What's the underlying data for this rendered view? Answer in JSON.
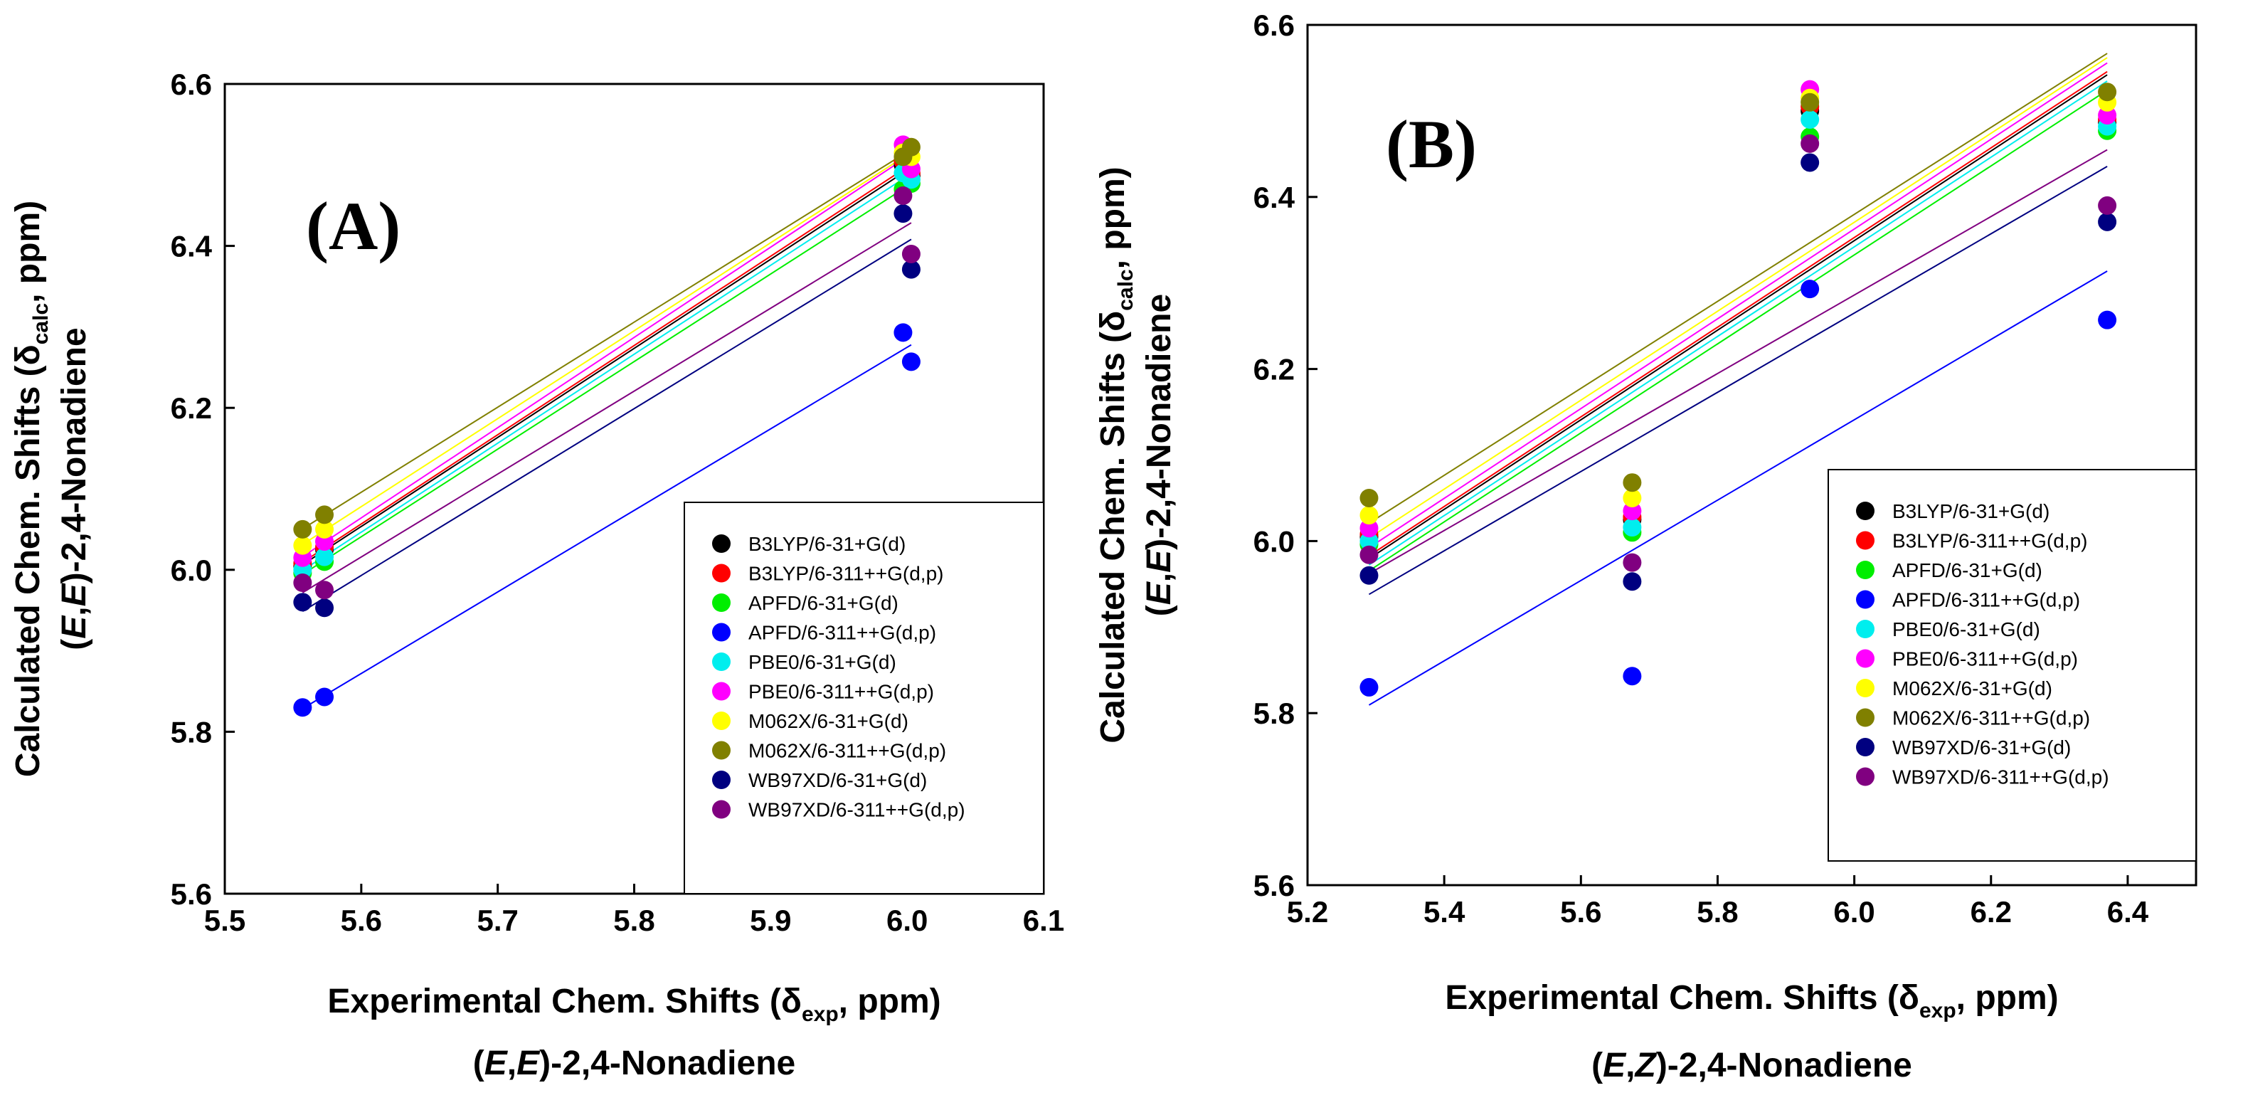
{
  "figure": {
    "panels": [
      "(A)",
      "(B)"
    ]
  },
  "legend": [
    {
      "name": "B3LYP/6-31+G(d)",
      "color": "#000000"
    },
    {
      "name": "B3LYP/6-311++G(d,p)",
      "color": "#ff0000"
    },
    {
      "name": "APFD/6-31+G(d)",
      "color": "#00ee00"
    },
    {
      "name": "APFD/6-311++G(d,p)",
      "color": "#0000ff"
    },
    {
      "name": "PBE0/6-31+G(d)",
      "color": "#00eeee"
    },
    {
      "name": "PBE0/6-311++G(d,p)",
      "color": "#ff00ff"
    },
    {
      "name": "M062X/6-31+G(d)",
      "color": "#ffff00"
    },
    {
      "name": "M062X/6-311++G(d,p)",
      "color": "#808000"
    },
    {
      "name": "WB97XD/6-31+G(d)",
      "color": "#000080"
    },
    {
      "name": "WB97XD/6-311++G(d,p)",
      "color": "#800080"
    }
  ],
  "chart_data": [
    {
      "type": "scatter",
      "panel_label": "(A)",
      "xlabel": "Experimental Chem. Shifts (δexp, ppm)",
      "xlabel_line2": "(E,E)-2,4-Nonadiene",
      "ylabel": "Calculated Chem. Shifts (δcalc, ppm)",
      "ylabel_line2": "(E,E)-2,4-Nonadiene",
      "xlim": [
        5.5,
        6.1
      ],
      "ylim": [
        5.6,
        6.6
      ],
      "xticks": [
        "5.5",
        "5.6",
        "5.7",
        "5.8",
        "5.9",
        "6.0",
        "6.1"
      ],
      "yticks": [
        "5.6",
        "5.8",
        "6.0",
        "6.2",
        "6.4",
        "6.6"
      ],
      "legend_position": "bottom-right",
      "fit_lines": true,
      "series": [
        {
          "name": "B3LYP/6-31+G(d)",
          "color": "#000000",
          "x": [
            5.557,
            5.573,
            5.997,
            6.003
          ],
          "y": [
            6.005,
            6.025,
            6.5,
            6.487
          ]
        },
        {
          "name": "B3LYP/6-311++G(d,p)",
          "color": "#ff0000",
          "x": [
            5.557,
            5.573,
            5.997,
            6.003
          ],
          "y": [
            6.008,
            6.028,
            6.505,
            6.49
          ]
        },
        {
          "name": "APFD/6-31+G(d)",
          "color": "#00ee00",
          "x": [
            5.557,
            5.573,
            5.997,
            6.003
          ],
          "y": [
            5.996,
            6.01,
            6.47,
            6.477
          ]
        },
        {
          "name": "APFD/6-311++G(d,p)",
          "color": "#0000ff",
          "x": [
            5.557,
            5.573,
            5.997,
            6.003
          ],
          "y": [
            5.83,
            5.843,
            6.293,
            6.257
          ]
        },
        {
          "name": "PBE0/6-31+G(d)",
          "color": "#00eeee",
          "x": [
            5.557,
            5.573,
            5.997,
            6.003
          ],
          "y": [
            6.0,
            6.016,
            6.49,
            6.482
          ]
        },
        {
          "name": "PBE0/6-311++G(d,p)",
          "color": "#ff00ff",
          "x": [
            5.557,
            5.573,
            5.997,
            6.003
          ],
          "y": [
            6.015,
            6.035,
            6.525,
            6.495
          ]
        },
        {
          "name": "M062X/6-31+G(d)",
          "color": "#ffff00",
          "x": [
            5.557,
            5.573,
            5.997,
            6.003
          ],
          "y": [
            6.03,
            6.05,
            6.515,
            6.51
          ]
        },
        {
          "name": "M062X/6-311++G(d,p)",
          "color": "#808000",
          "x": [
            5.557,
            5.573,
            5.997,
            6.003
          ],
          "y": [
            6.05,
            6.068,
            6.51,
            6.522
          ]
        },
        {
          "name": "WB97XD/6-31+G(d)",
          "color": "#000080",
          "x": [
            5.557,
            5.573,
            5.997,
            6.003
          ],
          "y": [
            5.96,
            5.953,
            6.44,
            6.371
          ]
        },
        {
          "name": "WB97XD/6-311++G(d,p)",
          "color": "#800080",
          "x": [
            5.557,
            5.573,
            5.997,
            6.003
          ],
          "y": [
            5.984,
            5.975,
            6.462,
            6.39
          ]
        }
      ]
    },
    {
      "type": "scatter",
      "panel_label": "(B)",
      "xlabel": "Experimental Chem. Shifts (δexp, ppm)",
      "xlabel_line2": "(E,Z)-2,4-Nonadiene",
      "ylabel": "Calculated Chem. Shifts (δcalc, ppm)",
      "ylabel_line2": "(E,E)-2,4-Nonadiene",
      "xlim": [
        5.2,
        6.5
      ],
      "ylim": [
        5.6,
        6.6
      ],
      "xticks": [
        "5.2",
        "5.4",
        "5.6",
        "5.8",
        "6.0",
        "6.2",
        "6.4"
      ],
      "yticks": [
        "5.6",
        "5.8",
        "6.0",
        "6.2",
        "6.4",
        "6.6"
      ],
      "legend_position": "bottom-right",
      "fit_lines": true,
      "series": [
        {
          "name": "B3LYP/6-31+G(d)",
          "color": "#000000",
          "x": [
            5.29,
            5.675,
            5.935,
            6.37
          ],
          "y": [
            6.005,
            6.025,
            6.5,
            6.487
          ]
        },
        {
          "name": "B3LYP/6-311++G(d,p)",
          "color": "#ff0000",
          "x": [
            5.29,
            5.675,
            5.935,
            6.37
          ],
          "y": [
            6.008,
            6.028,
            6.505,
            6.49
          ]
        },
        {
          "name": "APFD/6-31+G(d)",
          "color": "#00ee00",
          "x": [
            5.29,
            5.675,
            5.935,
            6.37
          ],
          "y": [
            5.996,
            6.01,
            6.47,
            6.477
          ]
        },
        {
          "name": "APFD/6-311++G(d,p)",
          "color": "#0000ff",
          "x": [
            5.29,
            5.675,
            5.935,
            6.37
          ],
          "y": [
            5.83,
            5.843,
            6.293,
            6.257
          ]
        },
        {
          "name": "PBE0/6-31+G(d)",
          "color": "#00eeee",
          "x": [
            5.29,
            5.675,
            5.935,
            6.37
          ],
          "y": [
            6.0,
            6.016,
            6.49,
            6.482
          ]
        },
        {
          "name": "PBE0/6-311++G(d,p)",
          "color": "#ff00ff",
          "x": [
            5.29,
            5.675,
            5.935,
            6.37
          ],
          "y": [
            6.015,
            6.035,
            6.525,
            6.495
          ]
        },
        {
          "name": "M062X/6-31+G(d)",
          "color": "#ffff00",
          "x": [
            5.29,
            5.675,
            5.935,
            6.37
          ],
          "y": [
            6.03,
            6.05,
            6.515,
            6.51
          ]
        },
        {
          "name": "M062X/6-311++G(d,p)",
          "color": "#808000",
          "x": [
            5.29,
            5.675,
            5.935,
            6.37
          ],
          "y": [
            6.05,
            6.068,
            6.51,
            6.522
          ]
        },
        {
          "name": "WB97XD/6-31+G(d)",
          "color": "#000080",
          "x": [
            5.29,
            5.675,
            5.935,
            6.37
          ],
          "y": [
            5.96,
            5.953,
            6.44,
            6.371
          ]
        },
        {
          "name": "WB97XD/6-311++G(d,p)",
          "color": "#800080",
          "x": [
            5.29,
            5.675,
            5.935,
            6.37
          ],
          "y": [
            5.984,
            5.975,
            6.462,
            6.39
          ]
        }
      ]
    }
  ]
}
